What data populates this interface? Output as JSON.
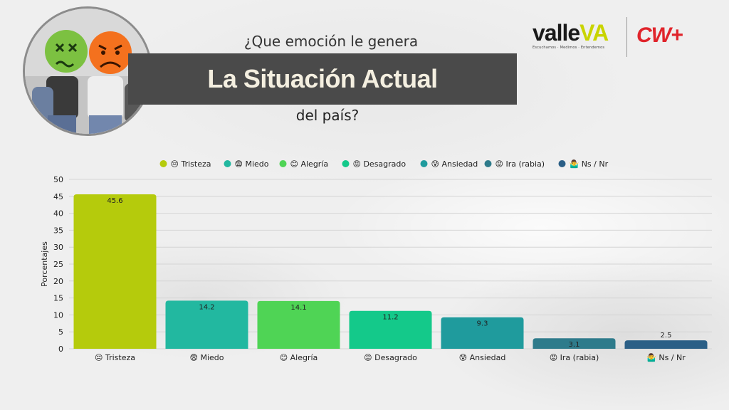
{
  "header": {
    "question_top": "¿Que emoción le genera",
    "title": "La Situación Actual",
    "question_bottom": "del país?"
  },
  "logos": {
    "valle_main": "valle",
    "valle_accent": "VA",
    "valle_tagline": "Escuchamos · Medimos · Entendemos",
    "cw": "CW+"
  },
  "colors": {
    "title_band": "#4a4a4a",
    "title_text": "#f4efe0",
    "valle_accent": "#c9d400",
    "cw_red": "#e0242b"
  },
  "chart_data": {
    "type": "bar",
    "title": "",
    "xlabel": "",
    "ylabel": "Porcentajes",
    "ylim": [
      0,
      50
    ],
    "yticks": [
      0,
      5,
      10,
      15,
      20,
      25,
      30,
      35,
      40,
      45,
      50
    ],
    "grid": true,
    "legend_position": "top-center",
    "categories": [
      "Tristeza",
      "Miedo",
      "Alegría",
      "Desagrado",
      "Ansiedad",
      "Ira (rabia)",
      "Ns / Nr"
    ],
    "emojis": [
      "😔",
      "😨",
      "😊",
      "😡",
      "😰",
      "😡",
      "🤷‍♂️"
    ],
    "values": [
      45.6,
      14.2,
      14.1,
      11.2,
      9.3,
      3.1,
      2.5
    ],
    "value_labels": [
      "45.6",
      "14.2",
      "14.1",
      "11.2",
      "9.3",
      "3.1",
      "2.5"
    ],
    "bar_colors": [
      "#b5cb0c",
      "#22b8a0",
      "#4fd455",
      "#14c98a",
      "#1f9b9d",
      "#2e7b8b",
      "#2b5f86"
    ]
  }
}
